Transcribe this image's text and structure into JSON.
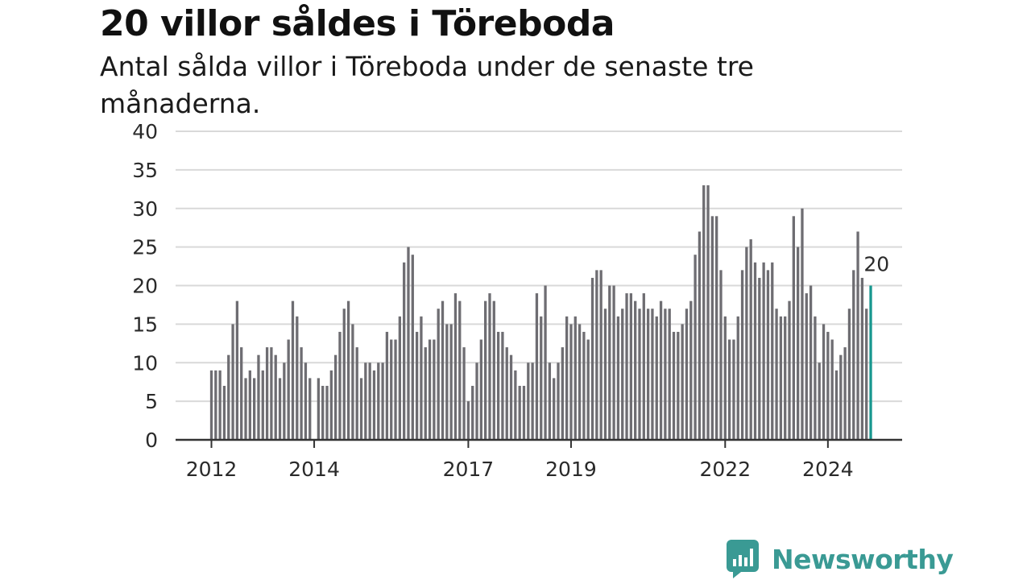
{
  "header": {
    "title": "20 villor såldes i Töreboda",
    "subtitle": "Antal sålda villor i Töreboda under de senaste tre månaderna."
  },
  "brand": {
    "name": "Newsworthy",
    "icon": "newsworthy-logo-icon",
    "color": "#3a9a94"
  },
  "colors": {
    "bar": "#6e6d72",
    "highlight": "#17978f",
    "grid": "#d9d9d9",
    "axis": "#333333"
  },
  "chart_data": {
    "type": "bar",
    "title": "20 villor såldes i Töreboda",
    "subtitle": "Antal sålda villor i Töreboda under de senaste tre månaderna.",
    "xlabel": "",
    "ylabel": "",
    "ylim": [
      0,
      40
    ],
    "y_ticks": [
      0,
      5,
      10,
      15,
      20,
      25,
      30,
      35,
      40
    ],
    "x_tick_labels": [
      "2012",
      "2014",
      "2017",
      "2019",
      "2022",
      "2024"
    ],
    "grid": true,
    "x_start": "2012-01",
    "x_interval": "month",
    "values": [
      9,
      9,
      9,
      7,
      11,
      15,
      18,
      12,
      8,
      9,
      8,
      11,
      9,
      12,
      12,
      11,
      8,
      10,
      13,
      18,
      16,
      12,
      10,
      8,
      null,
      8,
      7,
      7,
      9,
      11,
      14,
      17,
      18,
      15,
      12,
      8,
      10,
      10,
      9,
      10,
      10,
      14,
      13,
      13,
      16,
      23,
      25,
      24,
      14,
      16,
      12,
      13,
      13,
      17,
      18,
      15,
      15,
      19,
      18,
      12,
      5,
      7,
      10,
      13,
      18,
      19,
      18,
      14,
      14,
      12,
      11,
      9,
      7,
      7,
      10,
      10,
      19,
      16,
      20,
      10,
      8,
      10,
      12,
      16,
      15,
      16,
      15,
      14,
      13,
      21,
      22,
      22,
      17,
      20,
      20,
      16,
      17,
      19,
      19,
      18,
      17,
      19,
      17,
      17,
      16,
      18,
      17,
      17,
      14,
      14,
      15,
      17,
      18,
      24,
      27,
      33,
      33,
      29,
      29,
      22,
      16,
      13,
      13,
      16,
      22,
      25,
      26,
      23,
      21,
      23,
      22,
      23,
      17,
      16,
      16,
      18,
      29,
      25,
      30,
      19,
      20,
      16,
      10,
      15,
      14,
      13,
      9,
      11,
      12,
      17,
      22,
      27,
      21,
      17,
      20
    ],
    "annotation": {
      "label": "20",
      "value": 20,
      "index": 155
    }
  }
}
